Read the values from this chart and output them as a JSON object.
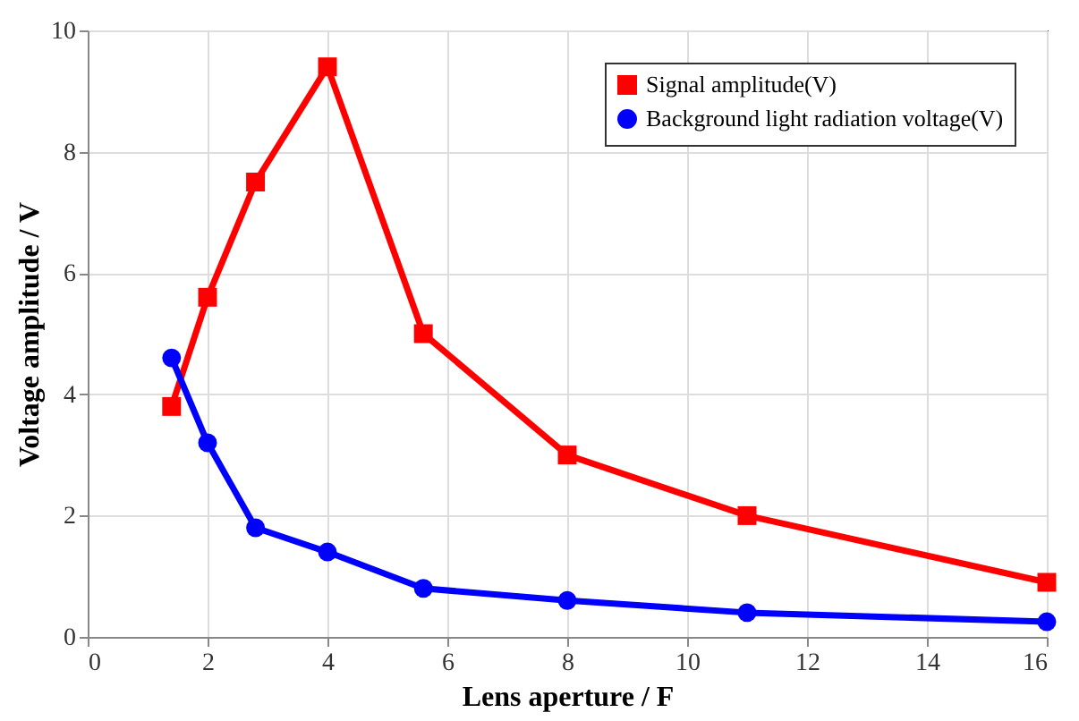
{
  "chart_data": {
    "type": "line",
    "xlabel": "Lens aperture / F",
    "ylabel": "Voltage amplitude / V",
    "xlim": [
      0,
      16
    ],
    "xticks": [
      0,
      2,
      4,
      6,
      8,
      10,
      12,
      14,
      16
    ],
    "ylim": [
      0,
      10
    ],
    "yticks": [
      0,
      2,
      4,
      6,
      8,
      10
    ],
    "grid": true,
    "legend": "top right",
    "line_style": "solid",
    "series": [
      {
        "name": "Signal amplitude(V)",
        "color": "#ff0000",
        "marker": "square",
        "x": [
          1.4,
          2,
          2.8,
          4,
          5.6,
          8,
          11,
          16
        ],
        "values": [
          3.8,
          5.6,
          7.5,
          9.4,
          5.0,
          3.0,
          2.0,
          0.9
        ]
      },
      {
        "name": "Background light radiation voltage(V)",
        "color": "#0000ff",
        "marker": "circle",
        "x": [
          1.4,
          2,
          2.8,
          4,
          5.6,
          8,
          11,
          16
        ],
        "values": [
          4.6,
          3.2,
          1.8,
          1.4,
          0.8,
          0.6,
          0.4,
          0.25
        ]
      }
    ]
  }
}
